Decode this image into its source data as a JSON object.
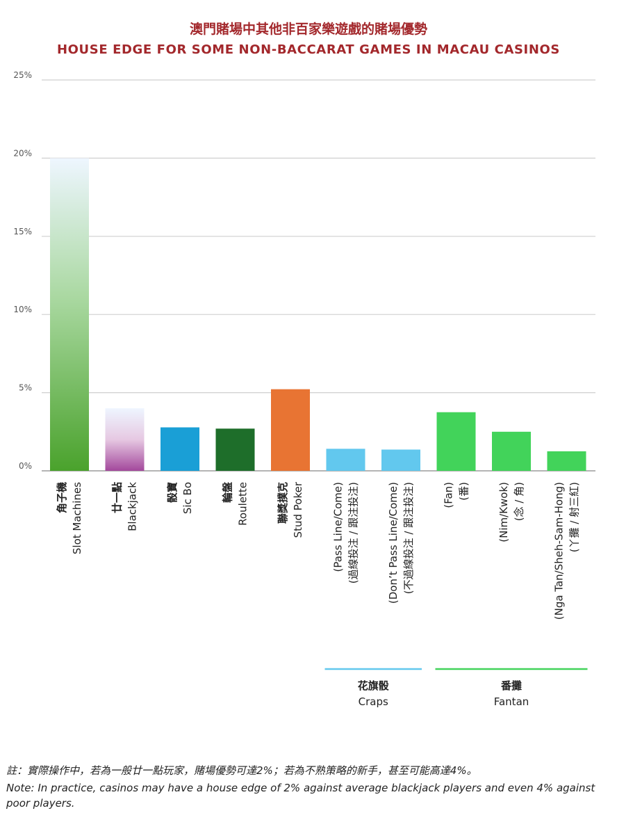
{
  "title_zh": "澳門賭場中其他非百家樂遊戲的賭場優勢",
  "title_en": "HOUSE EDGE FOR SOME NON-BACCARAT GAMES IN MACAU CASINOS",
  "note_zh": "註：實際操作中，若為一般廿一點玩家，賭場優勢可達2%；若為不熟策略的新手，甚至可能高達4%。",
  "note_en": "Note: In practice, casinos may have a house edge of 2% against average blackjack players and even 4% against poor players.",
  "chart_data": {
    "type": "bar",
    "ylim": [
      0,
      25
    ],
    "yticks": [
      "0%",
      "5%",
      "10%",
      "15%",
      "20%",
      "25%"
    ],
    "grid": true,
    "categories": [
      {
        "lines": [
          "角子機",
          "Slot Machines"
        ],
        "value": 20.0,
        "color": "#4aa22c",
        "style": "gradient-green",
        "bold_first": true
      },
      {
        "lines": [
          "廿一點",
          "Blackjack"
        ],
        "value": 4.0,
        "color": "#a3489c",
        "style": "gradient-purple",
        "bold_first": true
      },
      {
        "lines": [
          "骰寶",
          "Sic Bo"
        ],
        "value": 2.78,
        "color": "#1a9fd6",
        "style": "solid",
        "bold_first": true
      },
      {
        "lines": [
          "輪盤",
          "Roulette"
        ],
        "value": 2.7,
        "color": "#1e6e2a",
        "style": "solid",
        "bold_first": true
      },
      {
        "lines": [
          "聯獎撲克",
          "Stud Poker"
        ],
        "value": 5.22,
        "color": "#e87433",
        "style": "solid",
        "bold_first": true
      },
      {
        "lines": [
          "(Pass Line/Come)",
          "(過線投注 / 跟注投注)"
        ],
        "value": 1.41,
        "color": "#62c8ee",
        "style": "solid",
        "bold_first": false
      },
      {
        "lines": [
          "(Don’t Pass Line/Come)",
          "(不過線投注 / 跟注投注)"
        ],
        "value": 1.36,
        "color": "#62c8ee",
        "style": "solid",
        "bold_first": false
      },
      {
        "lines": [
          "(Fan)",
          "(番)"
        ],
        "value": 3.75,
        "color": "#42d35a",
        "style": "solid",
        "bold_first": false
      },
      {
        "lines": [
          "(Nim/Kwok)",
          "(念 / 角)"
        ],
        "value": 2.5,
        "color": "#42d35a",
        "style": "solid",
        "bold_first": false
      },
      {
        "lines": [
          "(Nga Tan/Sheh-Sam-Hong)",
          "(丫攤 / 射三紅)"
        ],
        "value": 1.25,
        "color": "#42d35a",
        "style": "solid",
        "bold_first": false
      }
    ],
    "groups": [
      {
        "label_zh": "花旗骰",
        "label_en": "Craps",
        "color": "#62c8ee",
        "from": 5,
        "to": 6
      },
      {
        "label_zh": "番攤",
        "label_en": "Fantan",
        "color": "#42d35a",
        "from": 7,
        "to": 9
      }
    ]
  }
}
